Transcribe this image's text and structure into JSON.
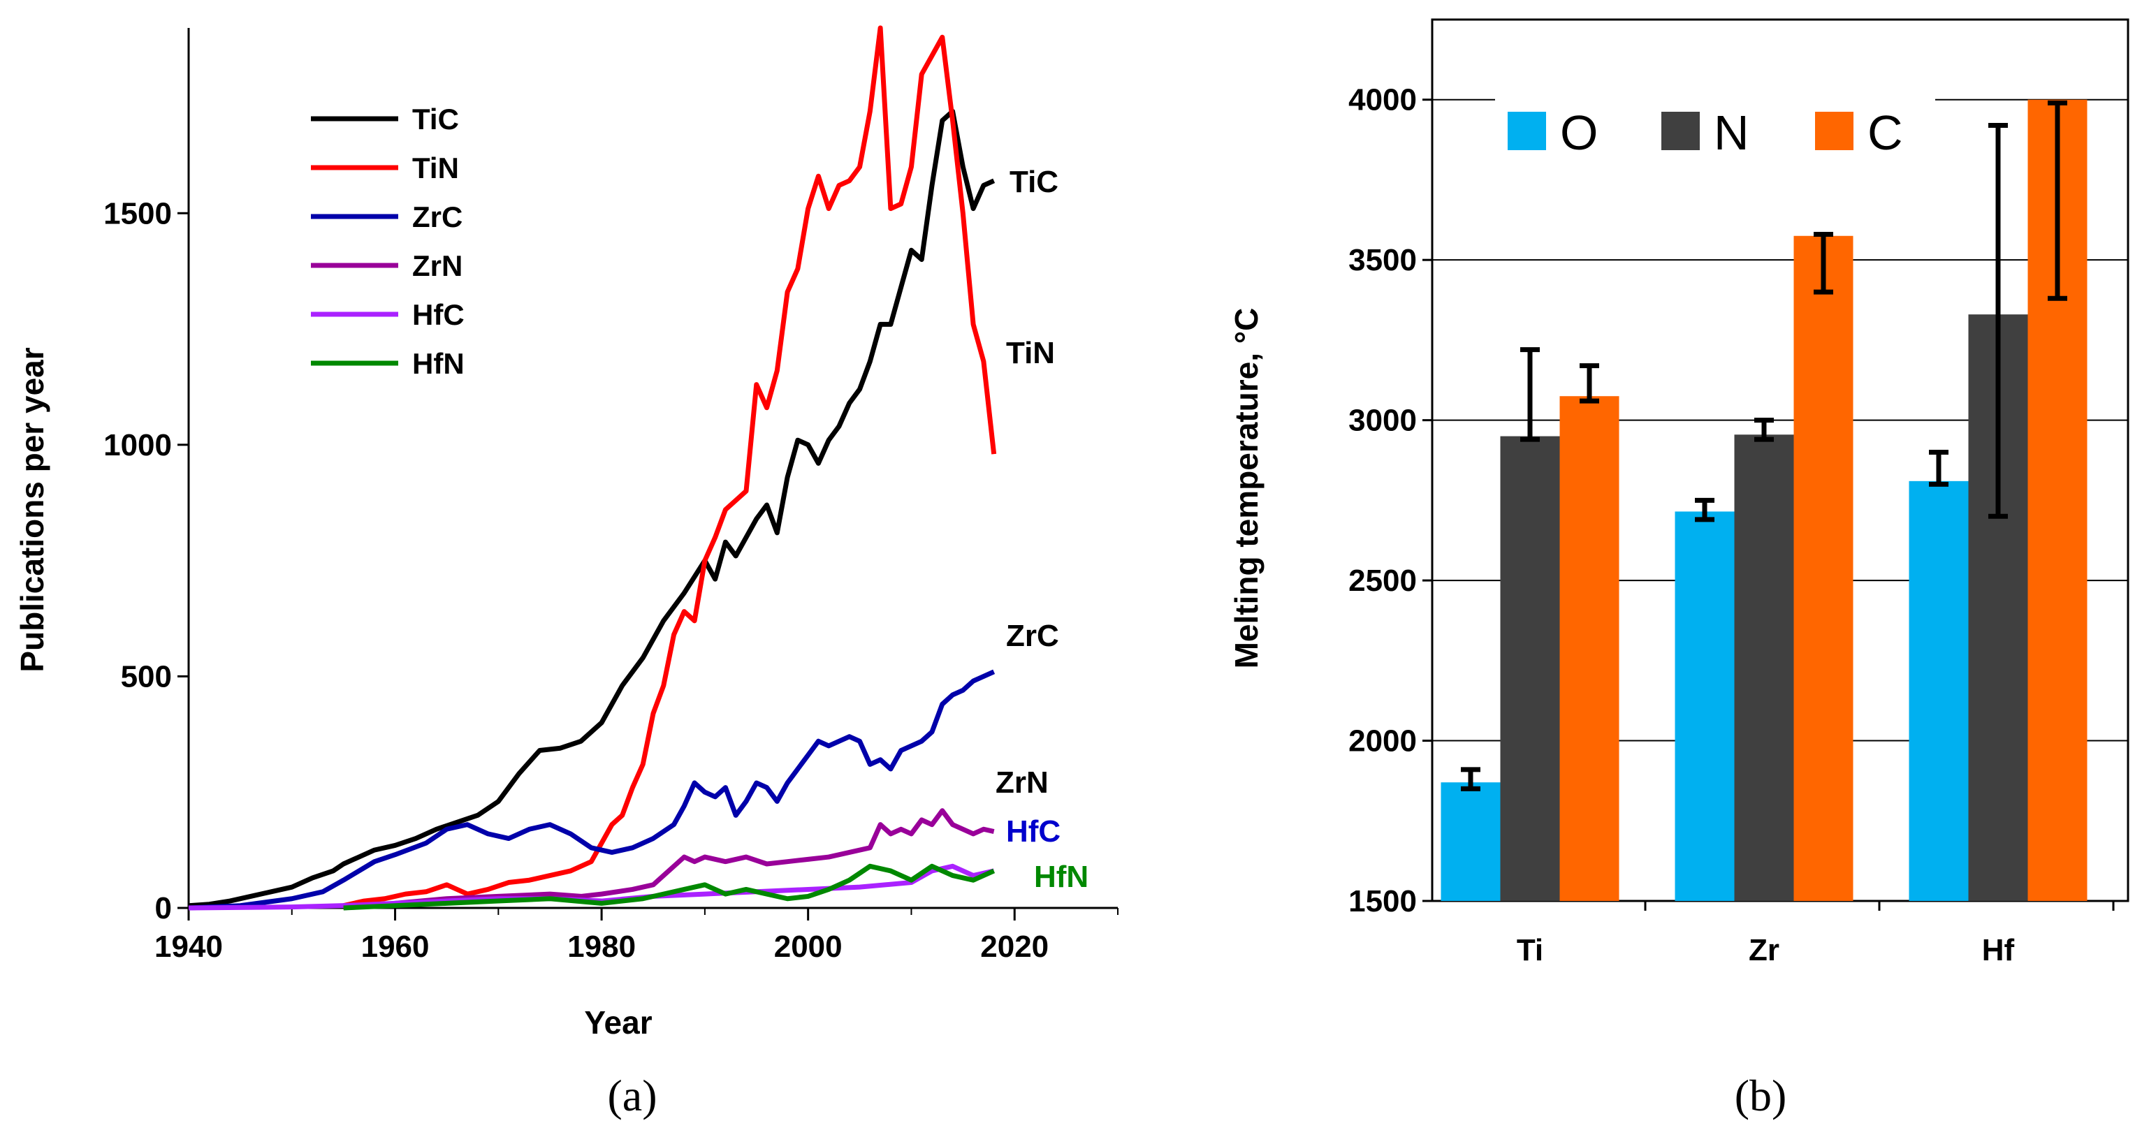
{
  "chart_data": [
    {
      "type": "line",
      "caption": "(a)",
      "xlabel": "Year",
      "ylabel": "Publications per year",
      "xlim": [
        1940,
        2030
      ],
      "ylim": [
        0,
        1900
      ],
      "xticks": [
        1940,
        1960,
        1980,
        2000,
        2020
      ],
      "yticks": [
        0,
        500,
        1000,
        1500
      ],
      "legend_position": "top-left",
      "grid": false,
      "series": [
        {
          "name": "TiC",
          "color": "#000000",
          "end_label": "TiC",
          "end_label_color": "#000000",
          "x": [
            1940,
            1942,
            1944,
            1946,
            1948,
            1950,
            1952,
            1954,
            1955,
            1956,
            1958,
            1960,
            1962,
            1964,
            1966,
            1968,
            1970,
            1972,
            1974,
            1976,
            1978,
            1980,
            1982,
            1984,
            1986,
            1988,
            1990,
            1991,
            1992,
            1993,
            1994,
            1995,
            1996,
            1997,
            1998,
            1999,
            2000,
            2001,
            2002,
            2003,
            2004,
            2005,
            2006,
            2007,
            2008,
            2009,
            2010,
            2011,
            2012,
            2013,
            2014,
            2015,
            2016,
            2017,
            2018
          ],
          "y": [
            5,
            8,
            15,
            25,
            35,
            45,
            65,
            80,
            95,
            105,
            125,
            135,
            150,
            170,
            185,
            200,
            230,
            290,
            340,
            345,
            360,
            400,
            480,
            540,
            620,
            680,
            750,
            710,
            790,
            760,
            800,
            840,
            870,
            810,
            930,
            1010,
            1000,
            960,
            1010,
            1040,
            1090,
            1120,
            1180,
            1260,
            1260,
            1340,
            1420,
            1400,
            1560,
            1700,
            1720,
            1600,
            1510,
            1560,
            1570
          ]
        },
        {
          "name": "TiN",
          "color": "#ff0000",
          "end_label": "TiN",
          "end_label_color": "#000000",
          "x": [
            1955,
            1957,
            1959,
            1961,
            1963,
            1965,
            1967,
            1969,
            1971,
            1973,
            1975,
            1977,
            1979,
            1981,
            1982,
            1983,
            1984,
            1985,
            1986,
            1987,
            1988,
            1989,
            1990,
            1991,
            1992,
            1993,
            1994,
            1995,
            1996,
            1997,
            1998,
            1999,
            2000,
            2001,
            2002,
            2003,
            2004,
            2005,
            2006,
            2007,
            2008,
            2009,
            2010,
            2011,
            2012,
            2013,
            2014,
            2015,
            2016,
            2017,
            2018
          ],
          "y": [
            5,
            15,
            20,
            30,
            35,
            50,
            30,
            40,
            55,
            60,
            70,
            80,
            100,
            180,
            200,
            260,
            310,
            420,
            480,
            590,
            640,
            620,
            750,
            800,
            860,
            880,
            900,
            1130,
            1080,
            1160,
            1330,
            1380,
            1510,
            1580,
            1510,
            1560,
            1570,
            1600,
            1720,
            1900,
            1510,
            1520,
            1600,
            1800,
            1840,
            1880,
            1700,
            1500,
            1260,
            1180,
            980
          ]
        },
        {
          "name": "ZrC",
          "color": "#0000aa",
          "end_label": "ZrC",
          "end_label_color": "#000000",
          "x": [
            1940,
            1945,
            1950,
            1953,
            1955,
            1958,
            1960,
            1963,
            1965,
            1967,
            1969,
            1971,
            1973,
            1975,
            1977,
            1979,
            1981,
            1983,
            1985,
            1987,
            1988,
            1989,
            1990,
            1991,
            1992,
            1993,
            1994,
            1995,
            1996,
            1997,
            1998,
            1999,
            2000,
            2001,
            2002,
            2003,
            2004,
            2005,
            2006,
            2007,
            2008,
            2009,
            2010,
            2011,
            2012,
            2013,
            2014,
            2015,
            2016,
            2017,
            2018
          ],
          "y": [
            0,
            5,
            20,
            35,
            60,
            100,
            115,
            140,
            170,
            180,
            160,
            150,
            170,
            180,
            160,
            130,
            120,
            130,
            150,
            180,
            220,
            270,
            250,
            240,
            260,
            200,
            230,
            270,
            260,
            230,
            270,
            300,
            330,
            360,
            350,
            360,
            370,
            360,
            310,
            320,
            300,
            340,
            350,
            360,
            380,
            440,
            460,
            470,
            490,
            500,
            510
          ]
        },
        {
          "name": "ZrN",
          "color": "#990099",
          "end_label": "ZrN",
          "end_label_color": "#000000",
          "x": [
            1955,
            1960,
            1965,
            1970,
            1975,
            1978,
            1980,
            1983,
            1985,
            1987,
            1988,
            1989,
            1990,
            1992,
            1994,
            1996,
            1998,
            2000,
            2002,
            2004,
            2006,
            2007,
            2008,
            2009,
            2010,
            2011,
            2012,
            2013,
            2014,
            2015,
            2016,
            2017,
            2018
          ],
          "y": [
            0,
            10,
            20,
            25,
            30,
            25,
            30,
            40,
            50,
            90,
            110,
            100,
            110,
            100,
            110,
            95,
            100,
            105,
            110,
            120,
            130,
            180,
            160,
            170,
            160,
            190,
            180,
            210,
            180,
            170,
            160,
            170,
            165
          ]
        },
        {
          "name": "HfC",
          "color": "#aa22ff",
          "end_label": "HfC",
          "end_label_color": "#0000cc",
          "x": [
            1940,
            1950,
            1955,
            1960,
            1965,
            1970,
            1975,
            1980,
            1985,
            1990,
            1995,
            2000,
            2005,
            2010,
            2012,
            2014,
            2016,
            2018
          ],
          "y": [
            0,
            2,
            5,
            10,
            15,
            20,
            20,
            15,
            25,
            30,
            35,
            40,
            45,
            55,
            80,
            90,
            70,
            80
          ]
        },
        {
          "name": "HfN",
          "color": "#008800",
          "end_label": "HfN",
          "end_label_color": "#008800",
          "x": [
            1955,
            1960,
            1965,
            1970,
            1975,
            1980,
            1984,
            1986,
            1988,
            1990,
            1992,
            1994,
            1996,
            1998,
            2000,
            2002,
            2004,
            2006,
            2008,
            2010,
            2012,
            2014,
            2016,
            2018
          ],
          "y": [
            0,
            5,
            10,
            15,
            20,
            10,
            20,
            30,
            40,
            50,
            30,
            40,
            30,
            20,
            25,
            40,
            60,
            90,
            80,
            60,
            90,
            70,
            60,
            80
          ]
        }
      ]
    },
    {
      "type": "bar",
      "caption": "(b)",
      "xlabel": "",
      "ylabel": "Melting temperature, °C",
      "ylim": [
        1500,
        4250
      ],
      "yticks": [
        1500,
        2000,
        2500,
        3000,
        3500,
        4000
      ],
      "grid": true,
      "legend_position": "top",
      "categories": [
        "Ti",
        "Zr",
        "Hf"
      ],
      "series": [
        {
          "name": "O",
          "color": "#00b0f0",
          "values": [
            1870,
            2715,
            2810
          ],
          "err_low": [
            1850,
            2690,
            2800
          ],
          "err_high": [
            1910,
            2750,
            2900
          ]
        },
        {
          "name": "N",
          "color": "#404040",
          "values": [
            2950,
            2955,
            3330
          ],
          "err_low": [
            2940,
            2940,
            2700
          ],
          "err_high": [
            3220,
            3000,
            3920
          ]
        },
        {
          "name": "C",
          "color": "#ff6600",
          "values": [
            3075,
            3575,
            4000
          ],
          "err_low": [
            3060,
            3400,
            3380
          ],
          "err_high": [
            3170,
            3580,
            3990
          ]
        }
      ]
    }
  ]
}
